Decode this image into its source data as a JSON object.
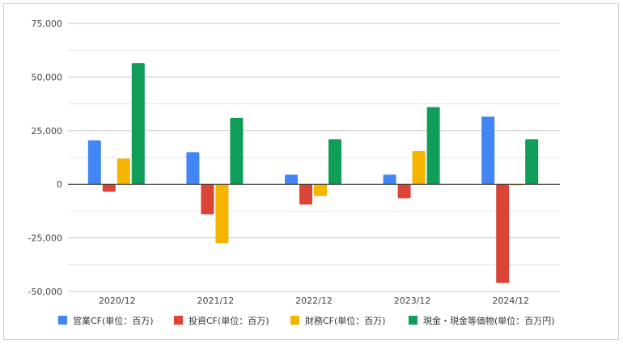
{
  "chart_data": {
    "type": "bar",
    "title": "",
    "xlabel": "",
    "ylabel": "",
    "categories": [
      "2020/12",
      "2021/12",
      "2022/12",
      "2023/12",
      "2024/12"
    ],
    "ylim": [
      -50000,
      75000
    ],
    "yticks": [
      75000,
      50000,
      25000,
      0,
      -25000,
      -50000
    ],
    "ytick_labels": [
      "75,000",
      "50,000",
      "25,000",
      "0",
      "-25,000",
      "-50,000"
    ],
    "grid": true,
    "legend_position": "bottom",
    "series": [
      {
        "name": "営業CF(単位：百万)",
        "color": "#4285f4",
        "values": [
          20500,
          15000,
          4500,
          4500,
          31500
        ]
      },
      {
        "name": "投資CF(単位：百万)",
        "color": "#db4437",
        "values": [
          -3500,
          -14000,
          -9500,
          -6500,
          -46000
        ]
      },
      {
        "name": "財務CF(単位：百万)",
        "color": "#f4b400",
        "values": [
          12000,
          -27500,
          -5500,
          15500,
          -500
        ]
      },
      {
        "name": "現金・現金等価物(単位：百万円)",
        "color": "#0f9d58",
        "values": [
          56500,
          31000,
          21000,
          36000,
          21000
        ]
      }
    ]
  }
}
